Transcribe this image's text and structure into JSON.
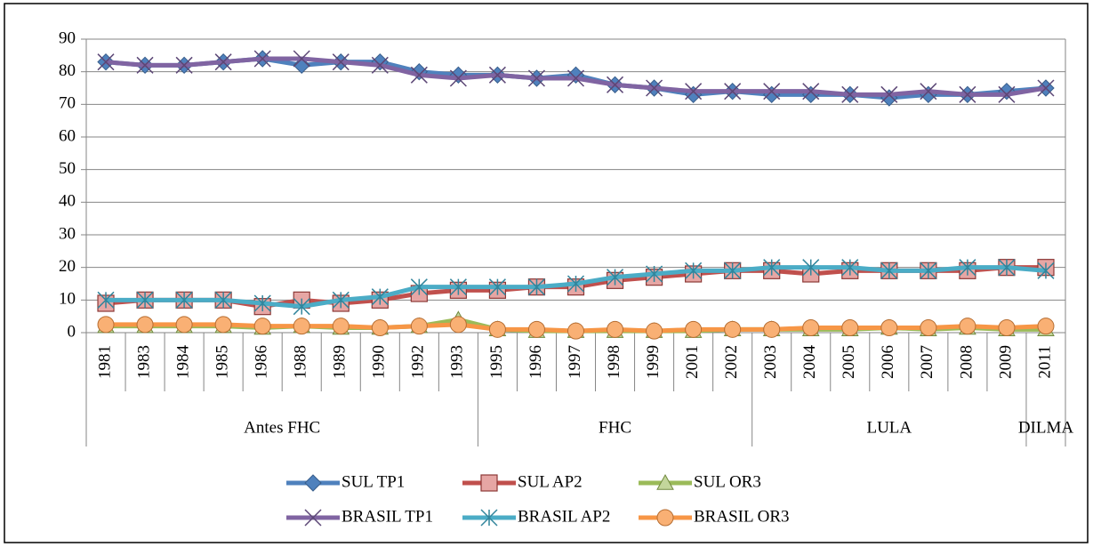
{
  "chart_data": {
    "type": "line",
    "categories": [
      "1981",
      "1983",
      "1984",
      "1985",
      "1986",
      "1988",
      "1989",
      "1990",
      "1992",
      "1993",
      "1995",
      "1996",
      "1997",
      "1998",
      "1999",
      "2001",
      "2002",
      "2003",
      "2004",
      "2005",
      "2006",
      "2007",
      "2008",
      "2009",
      "2011"
    ],
    "groups": [
      "Antes FHC",
      null,
      null,
      null,
      null,
      null,
      null,
      null,
      null,
      null,
      "FHC",
      null,
      null,
      null,
      null,
      null,
      null,
      "LULA",
      null,
      null,
      null,
      null,
      null,
      null,
      "DILMA"
    ],
    "series": [
      {
        "name": "SUL TP1",
        "color": "#4f81bd",
        "marker": "diamond",
        "values": [
          83,
          82,
          82,
          83,
          84,
          82,
          83,
          83,
          80,
          79,
          79,
          78,
          79,
          76,
          75,
          73,
          74,
          73,
          73,
          73,
          72,
          73,
          73,
          74,
          75
        ]
      },
      {
        "name": "SUL AP2",
        "color": "#c0504d",
        "marker": "square",
        "values": [
          9,
          10,
          10,
          10,
          8,
          10,
          9,
          10,
          12,
          13,
          13,
          14,
          14,
          16,
          17,
          18,
          19,
          19,
          18,
          19,
          19,
          19,
          19,
          20,
          20
        ]
      },
      {
        "name": "SUL OR3",
        "color": "#9bbb59",
        "marker": "triangle",
        "values": [
          2,
          2,
          2,
          2,
          1.5,
          2,
          1.5,
          1.5,
          2,
          4,
          1,
          0.5,
          0.5,
          0.5,
          0.5,
          0.5,
          1,
          1,
          1,
          1,
          1.5,
          1,
          1.5,
          1,
          1
        ]
      },
      {
        "name": "BRASIL TP1",
        "color": "#8064a2",
        "marker": "x",
        "values": [
          83,
          82,
          82,
          83,
          84,
          84,
          83,
          82,
          79,
          78,
          79,
          78,
          78,
          76,
          75,
          74,
          74,
          74,
          74,
          73,
          73,
          74,
          73,
          73,
          75
        ]
      },
      {
        "name": "BRASIL AP2",
        "color": "#4bacc6",
        "marker": "star",
        "values": [
          10,
          10,
          10,
          10,
          9,
          8,
          10,
          11,
          14,
          14,
          14,
          14,
          15,
          17,
          18,
          19,
          19,
          20,
          20,
          20,
          19,
          19,
          20,
          20,
          19
        ]
      },
      {
        "name": "BRASIL OR3",
        "color": "#f79646",
        "marker": "circle",
        "values": [
          2.5,
          2.5,
          2.5,
          2.5,
          2,
          2,
          2,
          1.5,
          2,
          2.5,
          1,
          1,
          0.5,
          1,
          0.5,
          1,
          1,
          1,
          1.5,
          1.5,
          1.5,
          1.5,
          2,
          1.5,
          2
        ]
      }
    ],
    "ylim": [
      0,
      90
    ],
    "yticks": [
      0,
      10,
      20,
      30,
      40,
      50,
      60,
      70,
      80,
      90
    ],
    "grid": true,
    "legend": "bottom"
  }
}
